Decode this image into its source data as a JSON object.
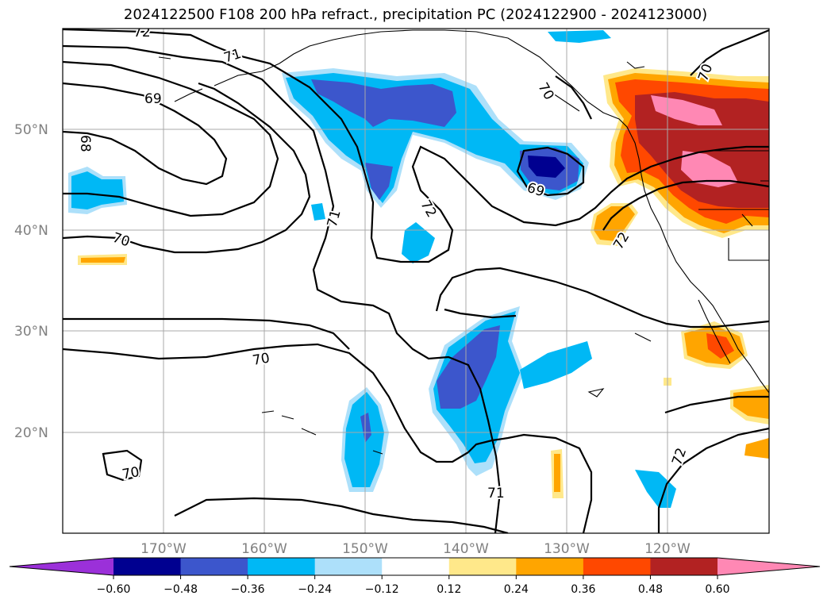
{
  "title": "2024122500 F108 200 hPa refract., precipitation PC (2024122900 - 2024123000)",
  "latitude_labels": [
    "50°N",
    "40°N",
    "30°N",
    "20°N"
  ],
  "longitude_labels": [
    "170°W",
    "160°W",
    "150°W",
    "140°W",
    "130°W",
    "120°W"
  ],
  "contour_labels": [
    "72",
    "71",
    "69",
    "68",
    "70",
    "69",
    "71",
    "72",
    "70",
    "70",
    "72",
    "70",
    "71",
    "72",
    "70"
  ],
  "colorbar": {
    "ticks": [
      "−0.60",
      "−0.48",
      "−0.36",
      "−0.24",
      "−0.12",
      "0.12",
      "0.24",
      "0.36",
      "0.48",
      "0.60"
    ],
    "low_extend_color": "#9b30d9",
    "bin_colors": [
      "#000090",
      "#3c56cc",
      "#00b8f5",
      "#ade0fa",
      "#ffffff",
      "#ffe88a",
      "#ffa500",
      "#ff4800",
      "#b22222"
    ],
    "high_extend_color": "#ff88b4"
  },
  "colors": {
    "neg_light": "#ade0fa",
    "neg_mid": "#00b8f5",
    "neg_strong": "#3c56cc",
    "neg_max": "#000090",
    "pos_light": "#ffe88a",
    "pos_mid": "#ffa500",
    "pos_strong": "#ff4800",
    "pos_max": "#b22222",
    "pos_extreme": "#ff88b4"
  }
}
